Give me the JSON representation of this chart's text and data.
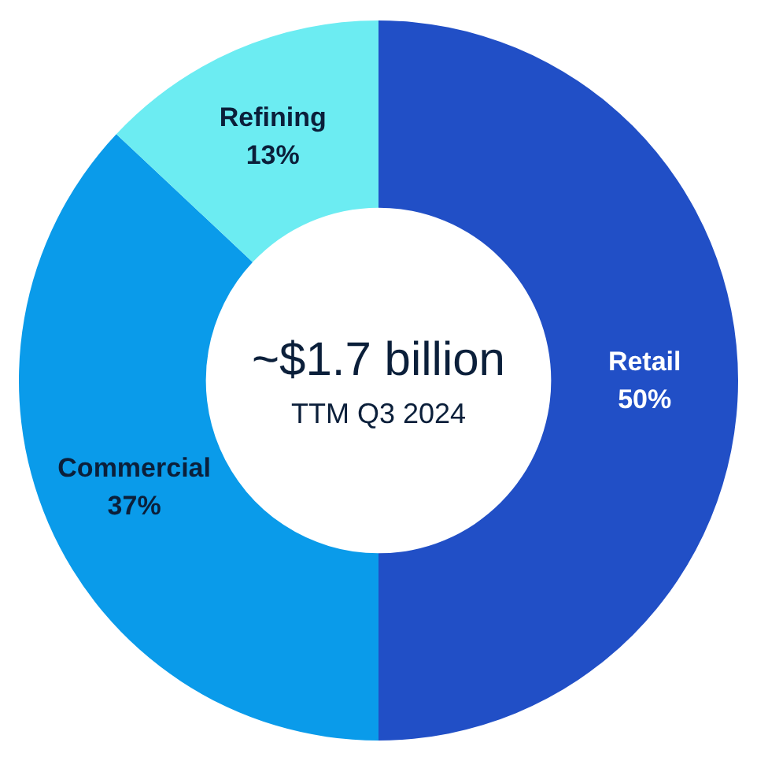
{
  "chart_data": {
    "type": "donut",
    "title": "~$1.7 billion",
    "subtitle": "TTM Q3 2024",
    "categories": [
      "Retail",
      "Commercial",
      "Refining"
    ],
    "values": [
      50,
      37,
      13
    ],
    "value_labels": [
      "50%",
      "37%",
      "13%"
    ],
    "colors": [
      "#214fc6",
      "#0a9bea",
      "#6cecf2"
    ],
    "legend": false
  }
}
